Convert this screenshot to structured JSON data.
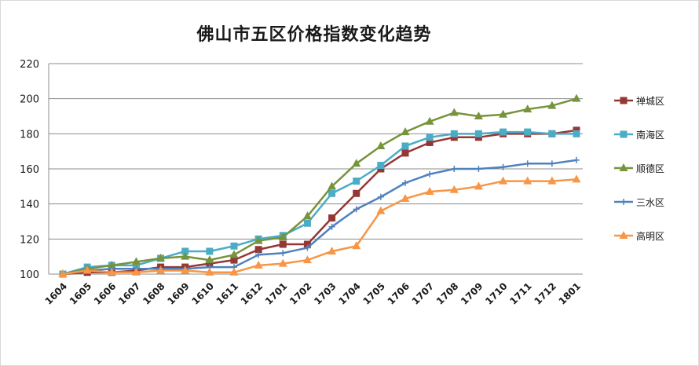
{
  "chart_data": {
    "type": "line",
    "title": "佛山市五区价格指数变化趋势",
    "xlabel": "",
    "ylabel": "",
    "ylim": [
      100,
      220
    ],
    "yticks": [
      100,
      120,
      140,
      160,
      180,
      200,
      220
    ],
    "grid": true,
    "legend_position": "right",
    "categories": [
      "1604",
      "1605",
      "1606",
      "1607",
      "1608",
      "1609",
      "1610",
      "1611",
      "1612",
      "1701",
      "1702",
      "1703",
      "1704",
      "1705",
      "1706",
      "1707",
      "1708",
      "1709",
      "1710",
      "1711",
      "1712",
      "1801"
    ],
    "series": [
      {
        "name": "禅城区",
        "color": "#953735",
        "marker": "square",
        "values": [
          100,
          101,
          101,
          102,
          104,
          104,
          106,
          108,
          114,
          117,
          117,
          132,
          146,
          160,
          169,
          175,
          178,
          178,
          180,
          180,
          180,
          182
        ]
      },
      {
        "name": "南海区",
        "color": "#4bacc6",
        "marker": "square",
        "values": [
          100,
          104,
          105,
          105,
          109,
          113,
          113,
          116,
          120,
          122,
          129,
          146,
          153,
          162,
          173,
          178,
          180,
          180,
          181,
          181,
          180,
          180
        ]
      },
      {
        "name": "顺德区",
        "color": "#77933c",
        "marker": "triangle",
        "values": [
          100,
          103,
          105,
          107,
          109,
          110,
          108,
          111,
          119,
          121,
          133,
          150,
          163,
          173,
          181,
          187,
          192,
          190,
          191,
          194,
          196,
          200
        ]
      },
      {
        "name": "三水区",
        "color": "#4f81bd",
        "marker": "plus",
        "values": [
          100,
          102,
          103,
          103,
          103,
          103,
          104,
          104,
          111,
          112,
          115,
          127,
          137,
          144,
          152,
          157,
          160,
          160,
          161,
          163,
          163,
          165
        ]
      },
      {
        "name": "高明区",
        "color": "#f79646",
        "marker": "triangle",
        "values": [
          100,
          102,
          101,
          101,
          102,
          102,
          101,
          101,
          105,
          106,
          108,
          113,
          116,
          136,
          143,
          147,
          148,
          150,
          153,
          153,
          153,
          154
        ]
      }
    ]
  }
}
